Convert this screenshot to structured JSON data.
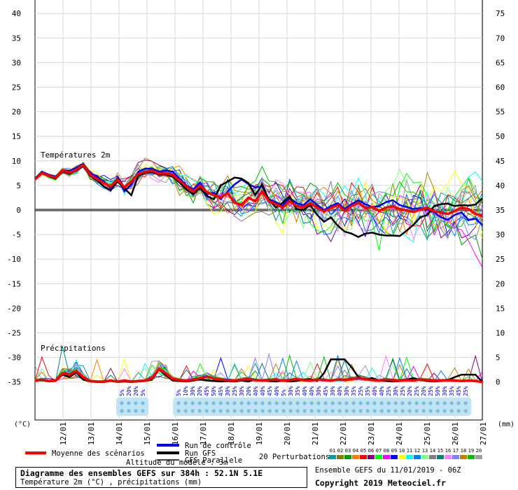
{
  "chart_data": {
    "type": "line",
    "title": "Diagramme des ensembles GEFS sur 384h : 52.1N 5.1E",
    "subtitle": "Température 2m (°C) , précipitations (mm)",
    "left_axis_unit": "(°C)",
    "right_axis_unit": "(mm)",
    "left_ticks": [
      40,
      35,
      30,
      25,
      20,
      15,
      10,
      5,
      0,
      -5,
      -10,
      -15,
      -20,
      -25,
      -30,
      -35
    ],
    "right_ticks": [
      75,
      70,
      65,
      60,
      55,
      50,
      45,
      40,
      35,
      30,
      25,
      20,
      15,
      10,
      5,
      0
    ],
    "temp_ylim": [
      -35,
      40
    ],
    "x_labels": [
      "12/01",
      "13/01",
      "14/01",
      "15/01",
      "16/01",
      "17/01",
      "18/01",
      "19/01",
      "20/01",
      "21/01",
      "22/01",
      "23/01",
      "24/01",
      "25/01",
      "26/01",
      "27/01"
    ],
    "temp_section_label": "Températures 2m",
    "precip_section_label": "Précipitations",
    "grid": true,
    "mean_temperature": {
      "name": "Moyenne des scénarios",
      "values": [
        6.2,
        7.5,
        7,
        6.6,
        8,
        7.6,
        8.2,
        9.2,
        7.2,
        6.3,
        5.5,
        4.8,
        6.2,
        4.6,
        5.8,
        7.4,
        7.8,
        8,
        7.4,
        7.5,
        7.2,
        6,
        4.8,
        3.8,
        5,
        3.6,
        3,
        2.6,
        3.4,
        1.5,
        1,
        2.5,
        1.8,
        3.8,
        1.8,
        1.2,
        0.5,
        1.8,
        0.8,
        0.6,
        1.4,
        0.5,
        -0.3,
        0.4,
        1,
        -0.2,
        0.8,
        1.5,
        0.4,
        0.6,
        -0.2,
        0.5,
        0.8,
        0.2,
        -0.1,
        -0.4,
        0.1,
        0.5,
        -0.3,
        -0.5,
        -0.8,
        -0.2,
        0.5,
        0.2,
        -0.8,
        -1.2
      ]
    },
    "control_run": {
      "name": "Run de contrôle",
      "values": [
        6.4,
        7.8,
        7.2,
        6.8,
        8.1,
        7.9,
        8.6,
        9.4,
        7.6,
        6.8,
        5.8,
        4.4,
        6.5,
        3.8,
        5.2,
        7.8,
        8.4,
        8.4,
        7.8,
        8,
        7.8,
        6.4,
        5,
        4.2,
        5.6,
        3.2,
        3.5,
        2.2,
        3.8,
        5.2,
        6.2,
        5.3,
        4.6,
        4.8,
        2.2,
        1.6,
        0.9,
        2.4,
        1.4,
        1,
        2.2,
        1,
        0,
        0.8,
        1.4,
        0.2,
        1.2,
        2,
        1.2,
        0.6,
        0.8,
        1.6,
        2,
        1,
        0.6,
        0.2,
        0.4,
        0.2,
        -0.5,
        -1.5,
        -2,
        -1,
        -0.5,
        -2,
        -1.8,
        -3
      ]
    },
    "gfs_run": {
      "name": "Run GFS",
      "values": [
        6.3,
        7.6,
        6.9,
        6.4,
        7.8,
        7.4,
        8,
        9,
        7,
        6,
        4.8,
        4,
        5.8,
        4.4,
        3,
        7,
        7.5,
        7.7,
        7.2,
        7.2,
        6.8,
        5.6,
        4.2,
        3.2,
        4.5,
        2.8,
        2.2,
        5,
        5.8,
        6.6,
        6.4,
        5.5,
        3,
        5.2,
        2,
        0.5,
        1.5,
        2.8,
        0.2,
        0,
        1,
        -1,
        -2.4,
        -1.5,
        -3.2,
        -4.4,
        -4.8,
        -5.5,
        -4.8,
        -4.6,
        -5,
        -5.2,
        -5.2,
        -5.3,
        -4.2,
        -3,
        -1.5,
        -1,
        0.8,
        1.2,
        1.3,
        0.8,
        1,
        0.9,
        1.1,
        2.4
      ]
    },
    "gfs_parallel": {
      "name": "GFS Parallele"
    },
    "perturbations_label": "20 Perturbations",
    "member_numbers": [
      "01",
      "02",
      "03",
      "04",
      "05",
      "06",
      "07",
      "08",
      "09",
      "10",
      "11",
      "12",
      "13",
      "14",
      "15",
      "16",
      "17",
      "18",
      "19",
      "20"
    ],
    "member_colors": [
      "#00a0a0",
      "#808000",
      "#00a000",
      "#ff8000",
      "#ff0000",
      "#800080",
      "#00ff00",
      "#ff00ff",
      "#0000ff",
      "#ffff00",
      "#00ffff",
      "#0080ff",
      "#80ff80",
      "#808080",
      "#008080",
      "#ff80ff",
      "#8080ff",
      "#c08000",
      "#00c000",
      "#a0a0a0"
    ],
    "mean_precip": {
      "values": [
        0.3,
        0.5,
        0.2,
        0.3,
        1.8,
        1.5,
        2.3,
        1,
        0.2,
        0.1,
        0.1,
        0.3,
        0.1,
        0.3,
        0.1,
        0.2,
        0.3,
        0.8,
        2.6,
        1.8,
        0.6,
        0.4,
        0.3,
        0.5,
        0.8,
        1.1,
        0.7,
        0.5,
        0.4,
        0.3,
        0.5,
        0.6,
        0.4,
        0.3,
        0.4,
        0.5,
        0.3,
        0.4,
        0.6,
        0.4,
        0.3,
        0.5,
        0.4,
        0.3,
        0.5,
        0.4,
        0.6,
        0.8,
        0.6,
        0.4,
        0.3,
        0.5,
        0.4,
        0.3,
        0.4,
        0.3,
        0.5,
        0.4,
        0.3,
        0.3,
        0.4,
        0.3,
        0.2,
        0.3,
        0.2,
        0
      ]
    },
    "gfs_precip": {
      "values": [
        0.2,
        0.4,
        0.1,
        0.2,
        1.5,
        1,
        2,
        0.5,
        0.1,
        0,
        0,
        0.2,
        0,
        0.1,
        0,
        0.1,
        0.2,
        0.5,
        2.5,
        1.4,
        0.3,
        0.2,
        0.1,
        0.3,
        0.5,
        0.3,
        0.2,
        0.1,
        0.2,
        0.1,
        0.3,
        0.1,
        0.5,
        0.3,
        0.2,
        0.1,
        0.3,
        0.1,
        0.2,
        0.5,
        0.6,
        0.2,
        1.8,
        4.6,
        4.6,
        4.6,
        3,
        1,
        0.5,
        0.8,
        0.3,
        0.2,
        0.1,
        0.2,
        0.5,
        0.8,
        0.4,
        0.2,
        0.1,
        0.2,
        0.4,
        1,
        1.5,
        1.5,
        1.5,
        0
      ]
    },
    "precip_prob_series": [
      {
        "x": 10,
        "labels": [
          "5%",
          "20%",
          "20%",
          "5%"
        ]
      },
      {
        "x": 17,
        "labels": [
          "5%",
          "10%",
          "30%",
          "20%",
          "45%",
          "50%",
          "45%",
          "30%",
          "25%",
          "30%",
          "20%",
          "40%",
          "40%",
          "45%",
          "40%",
          "5%",
          "30%",
          "35%",
          "40%",
          "40%",
          "30%",
          "45%",
          "30%",
          "40%",
          "30%",
          "35%",
          "25%",
          "35%",
          "40%",
          "40%",
          "25%",
          "30%",
          "25%",
          "20%",
          "25%",
          "20%",
          "25%",
          "50%",
          "30%",
          "35%",
          "45%",
          "25%"
        ]
      }
    ],
    "model_altitude_label": "Altitude du modèle : 3m"
  },
  "legend": {
    "mean_label": "Moyenne des scénarios",
    "control_label": "Run de contrôle",
    "gfs_label": "Run GFS",
    "parallel_label": "GFS Parallele",
    "perturb_label": "20 Perturbations",
    "altitude_label": "Altitude du modèle : 3m",
    "colors": {
      "mean": "#ff0000",
      "control": "#0000ff",
      "gfs": "#000000",
      "parallel": "#000000"
    }
  },
  "footer": {
    "title": "Diagramme des ensembles GEFS sur 384h : 52.1N 5.1E",
    "subtitle": "Température 2m (°C) , précipitations (mm)",
    "ensemble": "Ensemble GEFS du 11/01/2019 - 06Z",
    "copyright": "Copyright 2019 Meteociel.fr"
  }
}
